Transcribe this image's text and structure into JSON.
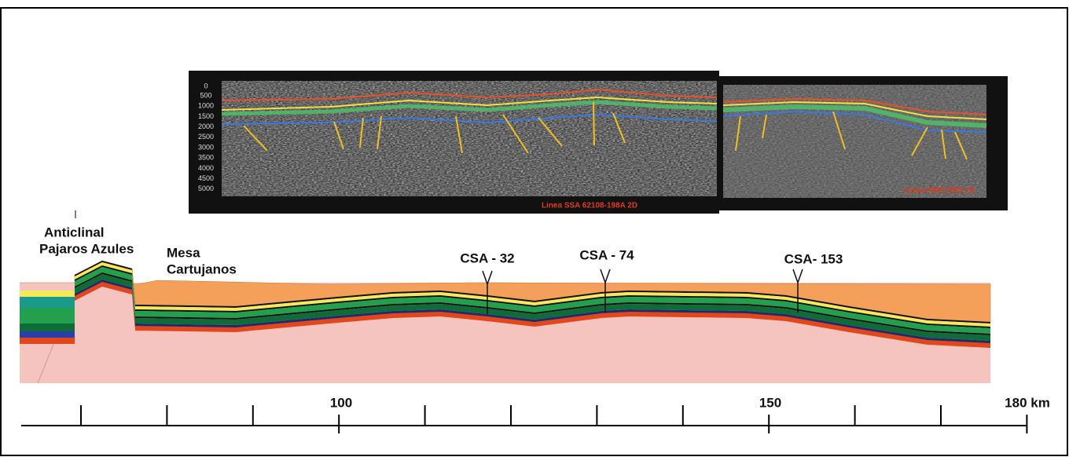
{
  "seismic": {
    "depth_labels": [
      "500",
      "1000",
      "1500",
      "2000",
      "2500",
      "3000",
      "3500",
      "4000",
      "4500",
      "5000"
    ],
    "line_1_label": "Linea SSA 62108-198A 2D",
    "line_2_label": "Linea DMS 5092 2D"
  },
  "section": {
    "anticline_label": [
      "Anticlinal",
      "Pajaros Azules"
    ],
    "mesa_label": [
      "Mesa",
      "Cartujanos"
    ],
    "wells": [
      "CSA - 32",
      "CSA - 74",
      "CSA- 153"
    ]
  },
  "scale": {
    "labels": [
      "100",
      "150",
      "180 km"
    ]
  }
}
